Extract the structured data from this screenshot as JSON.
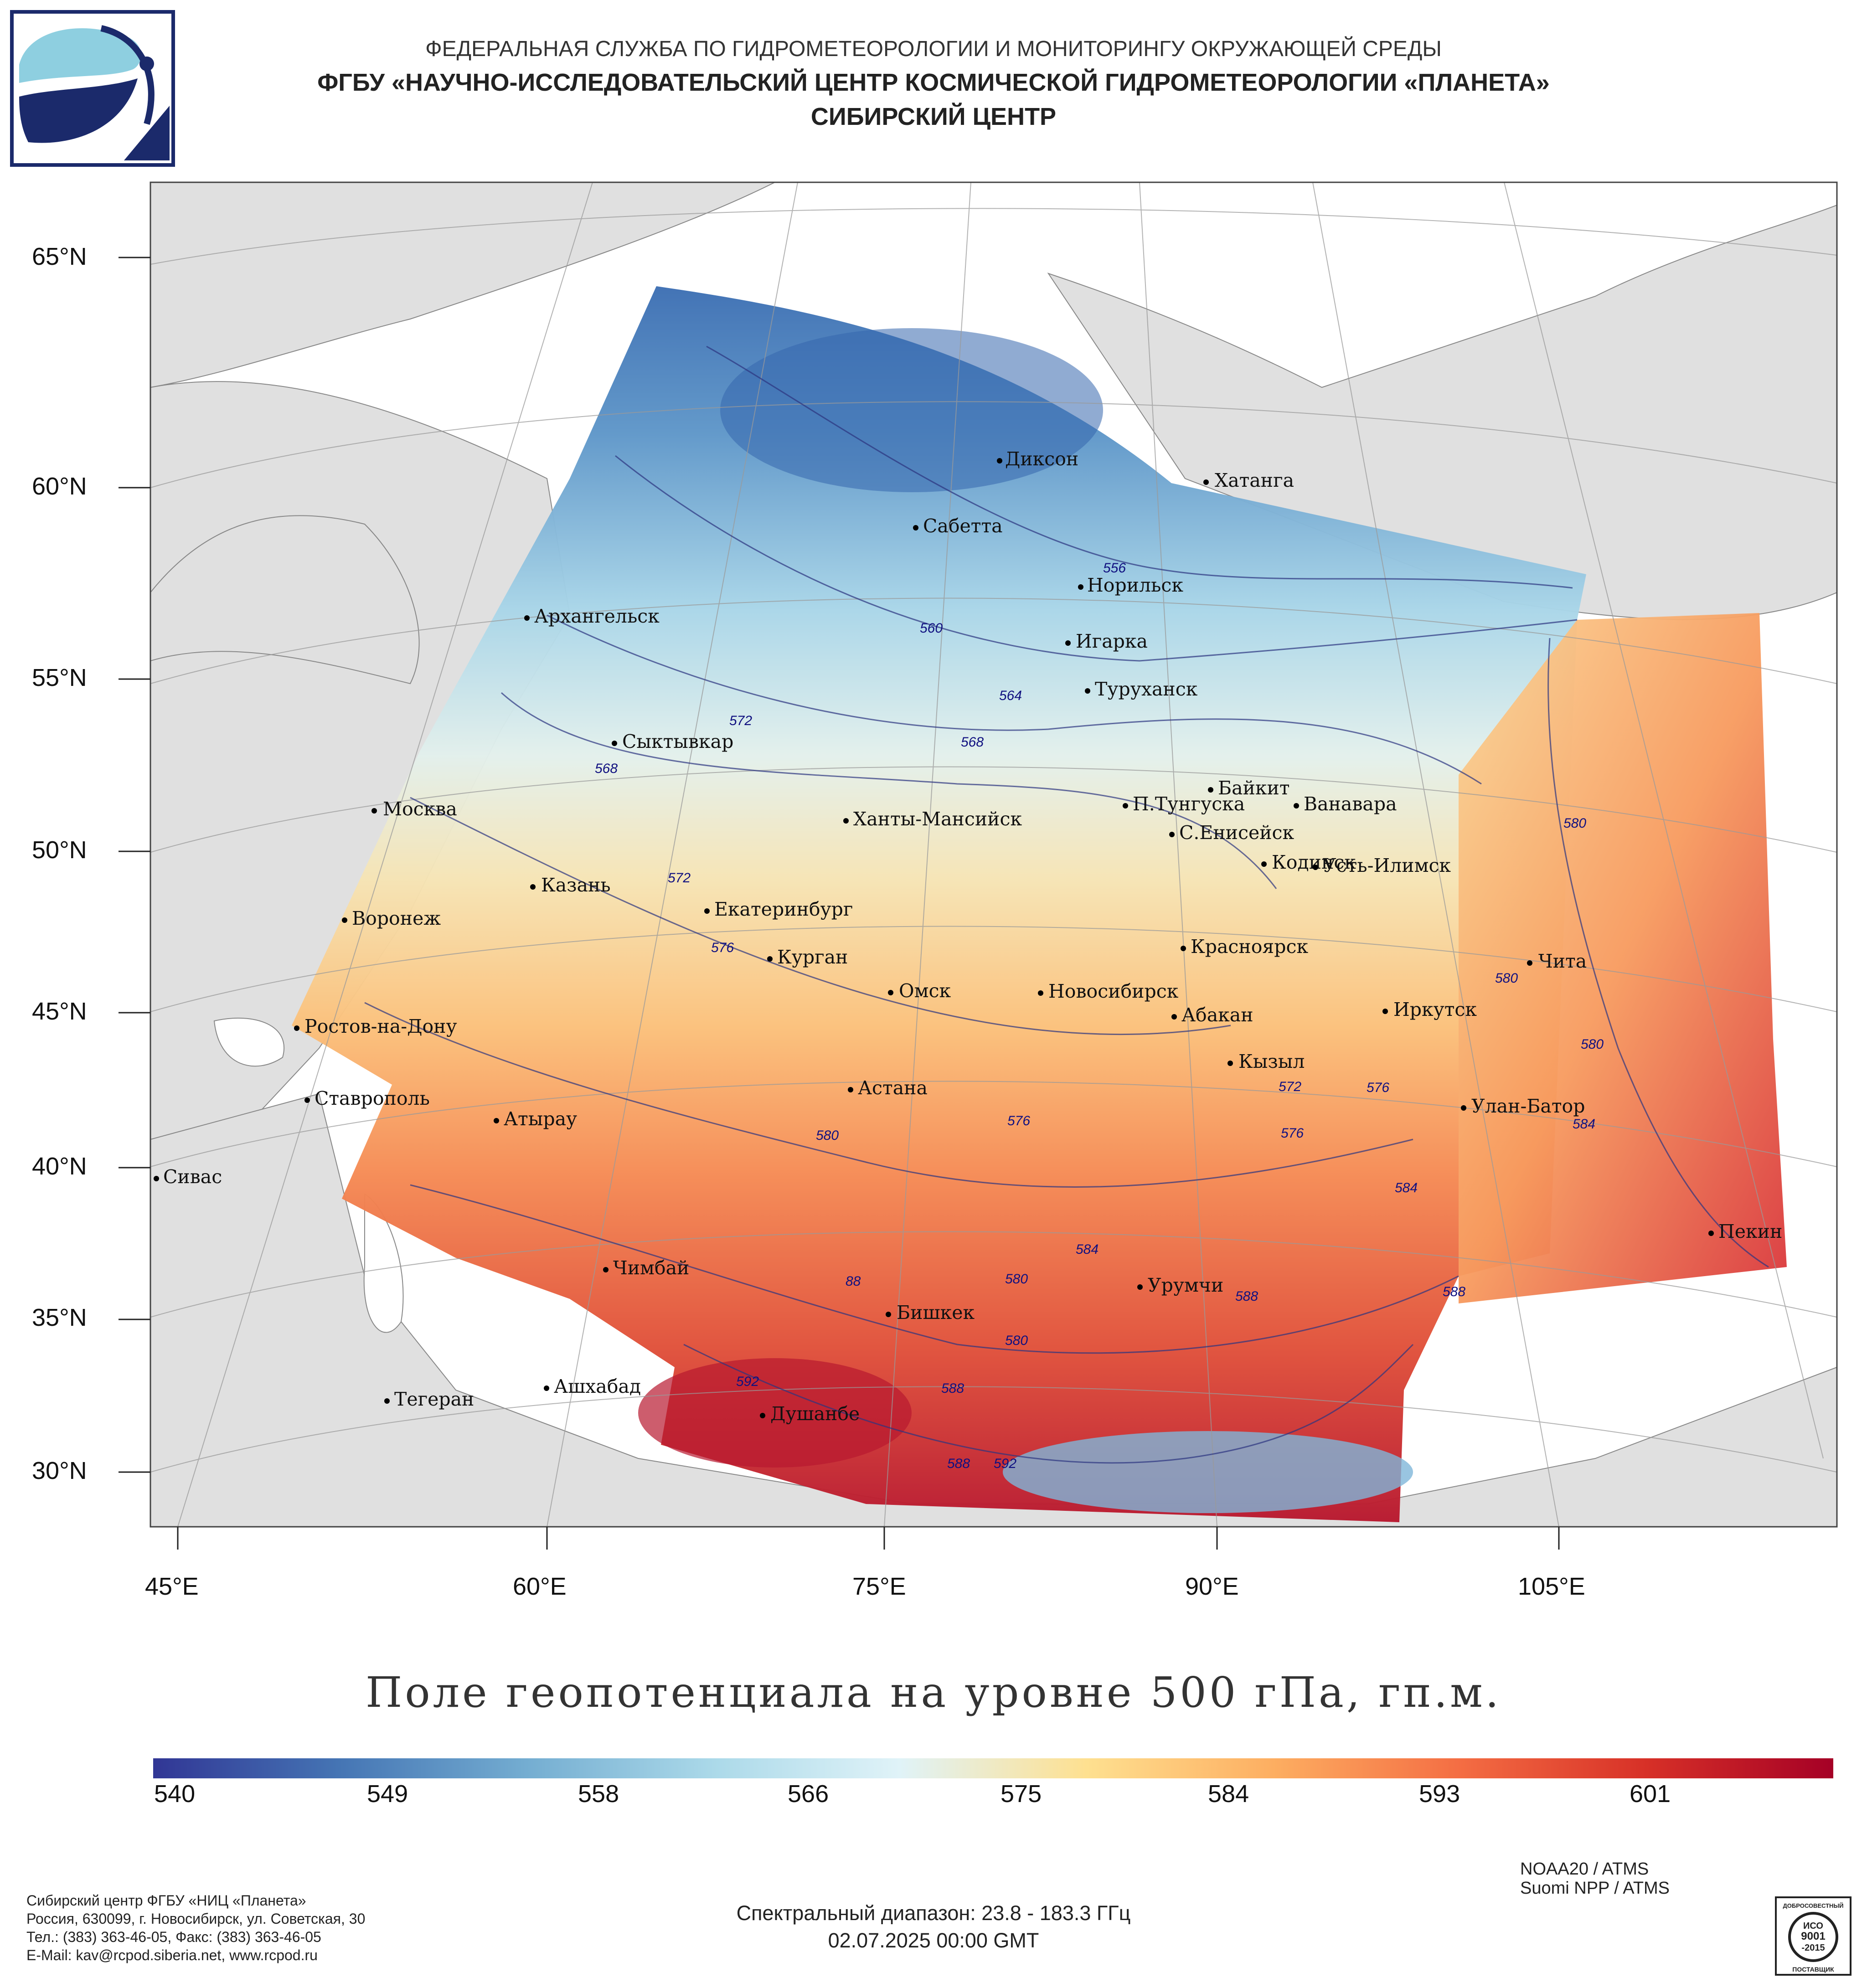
{
  "header": {
    "line1": "ФЕДЕРАЛЬНАЯ СЛУЖБА ПО ГИДРОМЕТЕОРОЛОГИИ И МОНИТОРИНГУ ОКРУЖАЮЩЕЙ СРЕДЫ",
    "line2": "ФГБУ «НАУЧНО-ИССЛЕДОВАТЕЛЬСКИЙ ЦЕНТР КОСМИЧЕСКОЙ ГИДРОМЕТЕОРОЛОГИИ «ПЛАНЕТА»",
    "line3": "СИБИРСКИЙ ЦЕНТР"
  },
  "axes": {
    "latitudes": [
      "65°N",
      "60°N",
      "55°N",
      "50°N",
      "45°N",
      "40°N",
      "35°N",
      "30°N"
    ],
    "longitudes": [
      "45°E",
      "60°E",
      "75°E",
      "90°E",
      "105°E"
    ]
  },
  "cities": [
    "Диксон",
    "Хатанга",
    "Сабетта",
    "Норильск",
    "Архангельск",
    "Игарка",
    "Туруханск",
    "Сыктывкар",
    "Байкит",
    "Москва",
    "П.Тунгуска",
    "Ванавара",
    "Ханты-Мансийск",
    "С.Енисейск",
    "Кодинск",
    "Усть-Илимск",
    "Казань",
    "Екатеринбург",
    "Воронеж",
    "Красноярск",
    "Курган",
    "Чита",
    "Омск",
    "Новосибирск",
    "Иркутск",
    "Абакан",
    "Ростов-на-Дону",
    "Кызыл",
    "Астана",
    "Ставрополь",
    "Улан-Батор",
    "Атырау",
    "Сивас",
    "Пекин",
    "Чимбай",
    "Урумчи",
    "Бишкек",
    "Ашхабад",
    "Тегеран",
    "Душанбе"
  ],
  "isolines": [
    "556",
    "560",
    "564",
    "568",
    "572",
    "568",
    "572",
    "576",
    "580",
    "576",
    "572",
    "576",
    "580",
    "576",
    "580",
    "580",
    "584",
    "584",
    "584",
    "588",
    "588",
    "588",
    "588",
    "580",
    "580",
    "592",
    "592",
    "88"
  ],
  "title": "Поле геопотенциала на уровне 500 гПа, гп.м.",
  "colorbar": {
    "ticks": [
      "540",
      "549",
      "558",
      "566",
      "575",
      "584",
      "593",
      "601"
    ],
    "colors": [
      "#313695",
      "#4575b4",
      "#74add1",
      "#abd9e9",
      "#e0f3f8",
      "#fee090",
      "#fdae61",
      "#f46d43",
      "#d73027",
      "#a50026"
    ]
  },
  "footer": {
    "org": "Сибирский центр ФГБУ «НИЦ «Планета»",
    "address": "Россия, 630099, г. Новосибирск, ул. Советская, 30",
    "phone": "Тел.: (383) 363-46-05, Факс: (383) 363-46-05",
    "email": "E-Mail: kav@rcpod.siberia.net, www.rcpod.ru",
    "spectral": "Спектральный диапазон: 23.8 - 183.3 ГГц",
    "date": "02.07.2025 00:00 GMT",
    "sat1": "NOAA20 / ATMS",
    "sat2": "Suomi NPP / ATMS",
    "iso_badge": [
      "ДОБРОСОВЕСТНЫЙ",
      "ИСО",
      "9001",
      "-2015",
      "ПОСТАВЩИК"
    ]
  }
}
